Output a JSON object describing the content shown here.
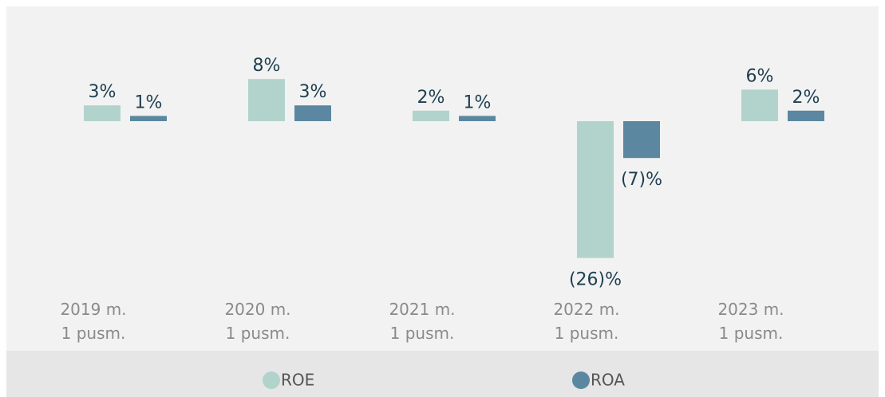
{
  "chart_data": {
    "type": "bar",
    "categories": [
      "2019 m.\n1 pusm.",
      "2020 m.\n1 pusm.",
      "2021 m.\n1 pusm.",
      "2022 m.\n1 pusm.",
      "2023 m.\n1 pusm."
    ],
    "series": [
      {
        "name": "ROE",
        "color": "#b2d3cb",
        "values": [
          3,
          8,
          2,
          -26,
          6
        ],
        "value_labels": [
          "3%",
          "8%",
          "2%",
          "(26)%",
          "6%"
        ]
      },
      {
        "name": "ROA",
        "color": "#5b87a0",
        "values": [
          1,
          3,
          1,
          -7,
          2
        ],
        "value_labels": [
          "1%",
          "3%",
          "1%",
          "(7)%",
          "2%"
        ]
      }
    ],
    "legend": "bottom"
  }
}
